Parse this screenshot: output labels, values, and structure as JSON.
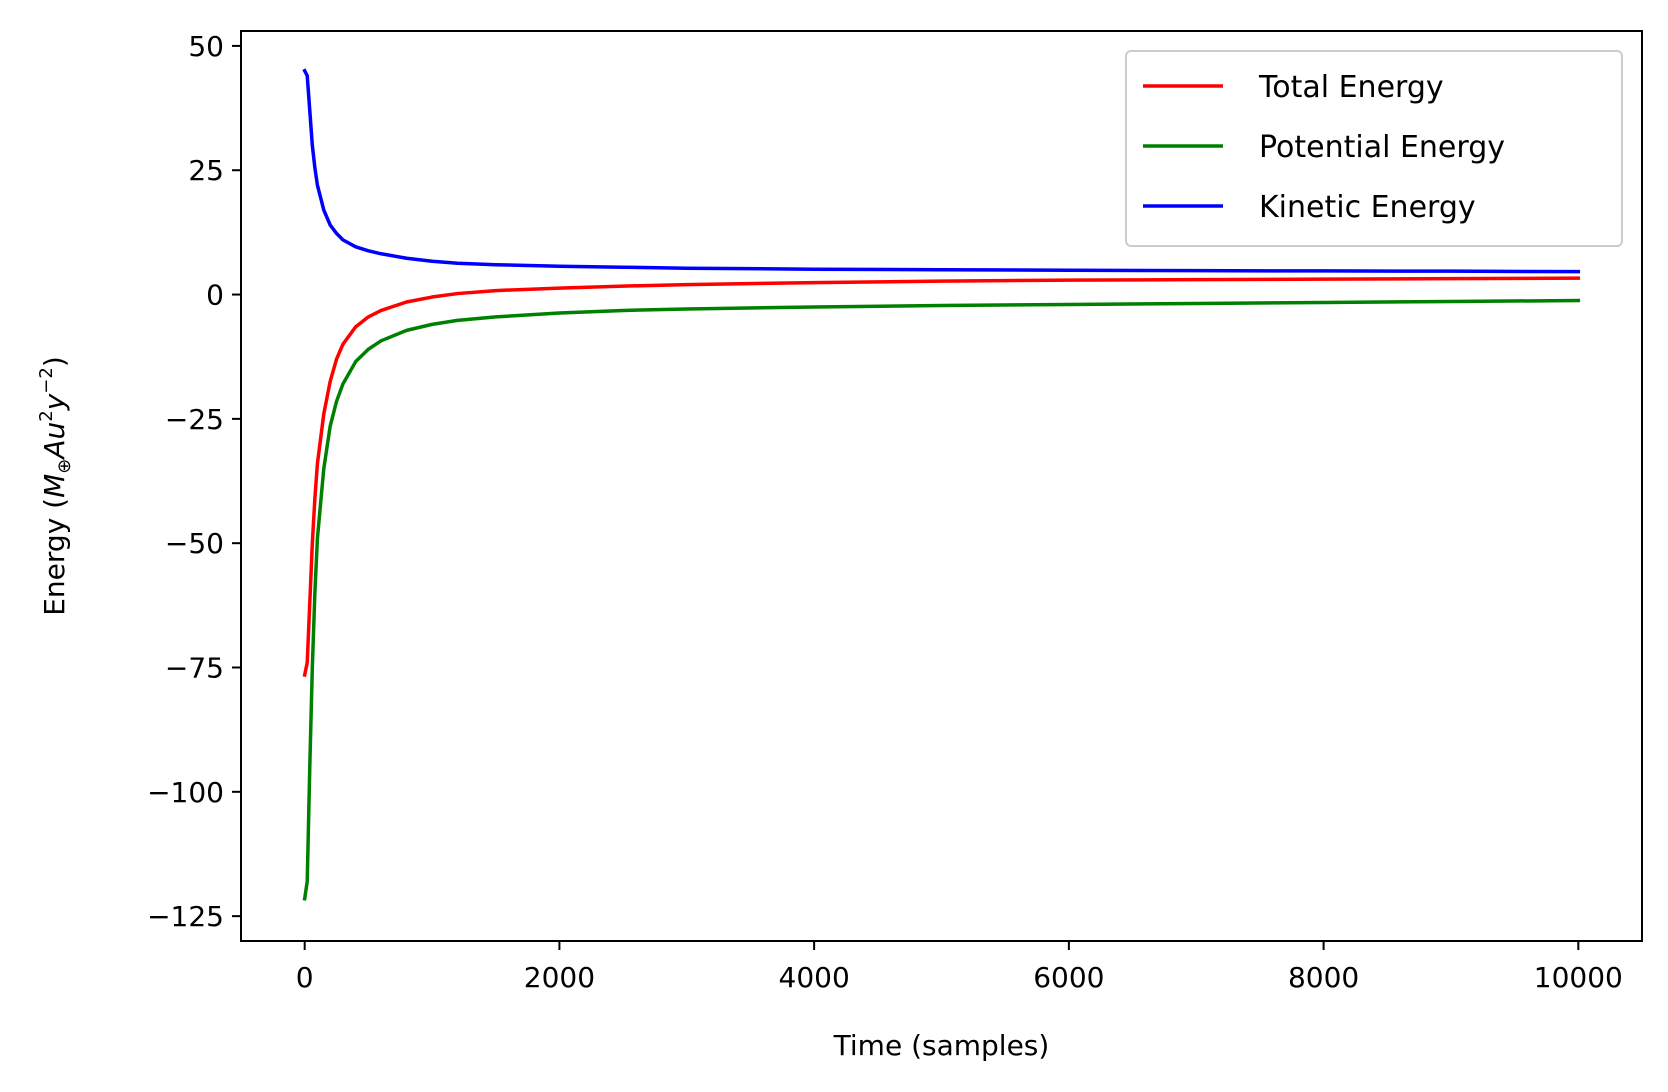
{
  "chart_data": {
    "type": "line",
    "title": "",
    "xlabel": "Time (samples)",
    "ylabel_parts": {
      "prefix": "Energy (",
      "M": "M",
      "sub": "⊕",
      "Au": "Au",
      "sup2": "2",
      "y": "y",
      "supneg2": "−2",
      "suffix": ")"
    },
    "xlim": [
      -500,
      10500
    ],
    "ylim": [
      -130,
      53
    ],
    "x_ticks": [
      0,
      2000,
      4000,
      6000,
      8000,
      10000
    ],
    "x_tick_labels": [
      "0",
      "2000",
      "4000",
      "6000",
      "8000",
      "10000"
    ],
    "y_ticks": [
      50,
      25,
      0,
      -25,
      -50,
      -75,
      -100,
      -125
    ],
    "y_tick_labels": [
      "50",
      "25",
      "0",
      "−25",
      "−50",
      "−75",
      "−100",
      "−125"
    ],
    "grid": false,
    "legend_position": "top-right",
    "series": [
      {
        "name": "Total Energy",
        "color": "#ff0000",
        "x": [
          0,
          20,
          40,
          60,
          80,
          100,
          150,
          200,
          250,
          300,
          400,
          500,
          600,
          800,
          1000,
          1200,
          1500,
          2000,
          2500,
          3000,
          4000,
          5000,
          6000,
          7000,
          8000,
          9000,
          10000
        ],
        "y": [
          -76.5,
          -74,
          -62,
          -50,
          -41,
          -34,
          -24,
          -17.5,
          -13,
          -10,
          -6.5,
          -4.5,
          -3.2,
          -1.5,
          -0.5,
          0.2,
          0.8,
          1.3,
          1.7,
          2.0,
          2.4,
          2.7,
          2.9,
          3.0,
          3.1,
          3.2,
          3.3
        ]
      },
      {
        "name": "Potential Energy",
        "color": "#008000",
        "x": [
          0,
          20,
          40,
          60,
          80,
          100,
          150,
          200,
          250,
          300,
          400,
          500,
          600,
          800,
          1000,
          1200,
          1500,
          2000,
          2500,
          3000,
          4000,
          5000,
          6000,
          7000,
          8000,
          9000,
          10000
        ],
        "y": [
          -121.5,
          -118,
          -95,
          -75,
          -60,
          -49,
          -35,
          -26.5,
          -21.5,
          -18,
          -13.5,
          -11,
          -9.3,
          -7.2,
          -6.0,
          -5.2,
          -4.5,
          -3.7,
          -3.2,
          -2.9,
          -2.5,
          -2.2,
          -2.0,
          -1.8,
          -1.6,
          -1.4,
          -1.2
        ]
      },
      {
        "name": "Kinetic Energy",
        "color": "#0000ff",
        "x": [
          0,
          20,
          40,
          60,
          80,
          100,
          150,
          200,
          250,
          300,
          400,
          500,
          600,
          800,
          1000,
          1200,
          1500,
          2000,
          2500,
          3000,
          4000,
          5000,
          6000,
          7000,
          8000,
          9000,
          10000
        ],
        "y": [
          45,
          44,
          37,
          30,
          25.5,
          22,
          17,
          14,
          12.3,
          11,
          9.6,
          8.8,
          8.2,
          7.3,
          6.7,
          6.3,
          6.0,
          5.7,
          5.5,
          5.3,
          5.1,
          5.0,
          4.9,
          4.8,
          4.75,
          4.7,
          4.6
        ]
      }
    ]
  }
}
